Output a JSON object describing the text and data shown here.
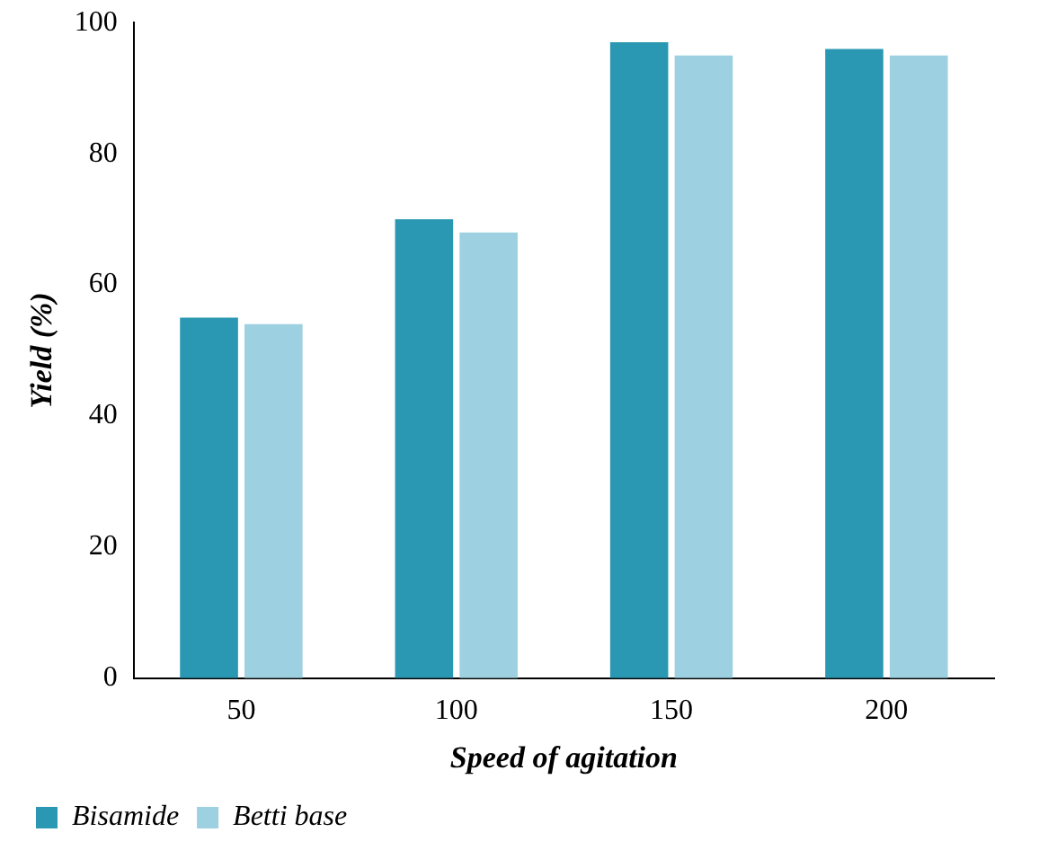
{
  "chart_data": {
    "type": "bar",
    "xlabel": "Speed of agitation",
    "ylabel": "Yield (%)",
    "categories": [
      "50",
      "100",
      "150",
      "200"
    ],
    "series": [
      {
        "name": "Bisamide",
        "color": "#2b98b3",
        "values": [
          55,
          70,
          97,
          96
        ]
      },
      {
        "name": "Betti base",
        "color": "#9dd0e0",
        "values": [
          54,
          68,
          95,
          95
        ]
      }
    ],
    "ylim": [
      0,
      100
    ],
    "yticks": [
      0,
      20,
      40,
      60,
      80,
      100
    ],
    "grid": false,
    "legend": "bottom left"
  }
}
